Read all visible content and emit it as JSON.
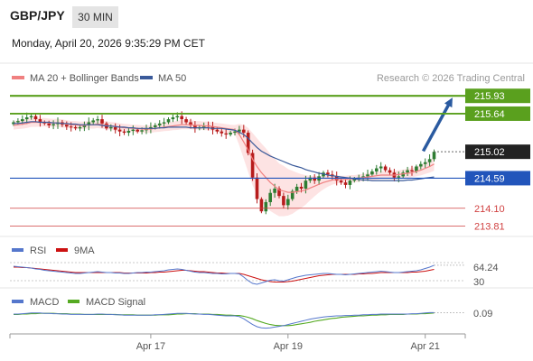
{
  "header": {
    "symbol": "GBP/JPY",
    "timeframe": "30 MIN",
    "datetime": "Monday, April 20, 2026 9:35:29 PM CET"
  },
  "credit": "Research © 2026 Trading Central",
  "colors": {
    "up_candle": "#2e7d32",
    "down_candle": "#b71c1c",
    "ma20": "#f08080",
    "bands_fill": "#fde3e3",
    "ma50": "#3a5a9a",
    "resistance": "#5aa01e",
    "support": "#2255bb",
    "minor_support": "#d04040",
    "arrow": "#2a5aa0",
    "rsi": "#5577cc",
    "rsi_ma": "#cc1111",
    "macd": "#5577cc",
    "macd_signal": "#55aa22"
  },
  "chart_data": [
    {
      "type": "candlestick",
      "legend": [
        {
          "name": "MA 20 + Bollinger Bands",
          "color": "#f08080"
        },
        {
          "name": "MA 50",
          "color": "#3a5a9a"
        }
      ],
      "ylim": [
        213.7,
        216.08
      ],
      "x_ticks": [
        {
          "label": "Apr 17",
          "index": 31
        },
        {
          "label": "Apr 19",
          "index": 62
        },
        {
          "label": "Apr 21",
          "index": 93
        }
      ],
      "levels": [
        {
          "value": 215.93,
          "label": "215.93",
          "style": "resistance-strong"
        },
        {
          "value": 215.64,
          "label": "215.64",
          "style": "resistance"
        },
        {
          "value": 215.02,
          "label": "215.02",
          "style": "last"
        },
        {
          "value": 214.59,
          "label": "214.59",
          "style": "support"
        },
        {
          "value": 214.1,
          "label": "214.10",
          "style": "minor"
        },
        {
          "value": 213.81,
          "label": "213.81",
          "style": "minor"
        }
      ],
      "forecast_arrow": {
        "from_index": 95,
        "from_value": 215.03,
        "to_index": 100,
        "to_value": 215.85
      },
      "closes": [
        215.5,
        215.52,
        215.55,
        215.58,
        215.6,
        215.55,
        215.5,
        215.48,
        215.45,
        215.47,
        215.5,
        215.46,
        215.43,
        215.42,
        215.4,
        215.42,
        215.45,
        215.5,
        215.53,
        215.55,
        215.48,
        215.4,
        215.42,
        215.38,
        215.35,
        215.33,
        215.36,
        215.38,
        215.35,
        215.37,
        215.4,
        215.42,
        215.45,
        215.48,
        215.5,
        215.55,
        215.58,
        215.6,
        215.55,
        215.5,
        215.45,
        215.4,
        215.42,
        215.45,
        215.43,
        215.38,
        215.35,
        215.32,
        215.3,
        215.33,
        215.35,
        215.38,
        215.33,
        215.0,
        214.6,
        214.25,
        214.05,
        214.2,
        214.35,
        214.42,
        214.3,
        214.15,
        214.25,
        214.38,
        214.45,
        214.42,
        214.55,
        214.6,
        214.55,
        214.62,
        214.68,
        214.65,
        214.62,
        214.55,
        214.52,
        214.48,
        214.55,
        214.58,
        214.6,
        214.62,
        214.65,
        214.7,
        214.75,
        214.78,
        214.72,
        214.68,
        214.6,
        214.62,
        214.68,
        214.72,
        214.7,
        214.78,
        214.82,
        214.85,
        214.9,
        215.02
      ],
      "ma50": [
        215.48,
        215.48,
        215.49,
        215.5,
        215.51,
        215.51,
        215.5,
        215.5,
        215.5,
        215.49,
        215.49,
        215.48,
        215.48,
        215.47,
        215.47,
        215.46,
        215.46,
        215.46,
        215.46,
        215.46,
        215.45,
        215.44,
        215.44,
        215.43,
        215.42,
        215.42,
        215.41,
        215.41,
        215.4,
        215.4,
        215.4,
        215.4,
        215.4,
        215.41,
        215.41,
        215.42,
        215.42,
        215.42,
        215.42,
        215.42,
        215.41,
        215.41,
        215.41,
        215.41,
        215.41,
        215.4,
        215.4,
        215.4,
        215.39,
        215.38,
        215.37,
        215.34,
        215.3,
        215.24,
        215.16,
        215.09,
        215.03,
        214.99,
        214.95,
        214.92,
        214.89,
        214.86,
        214.83,
        214.8,
        214.78,
        214.76,
        214.73,
        214.71,
        214.69,
        214.67,
        214.66,
        214.64,
        214.63,
        214.62,
        214.61,
        214.6,
        214.59,
        214.58,
        214.57,
        214.56,
        214.56,
        214.55,
        214.55,
        214.55,
        214.55,
        214.55,
        214.55,
        214.55,
        214.55,
        214.56,
        214.56,
        214.57,
        214.58,
        214.59,
        214.6,
        214.61
      ],
      "ma20": [
        215.45,
        215.46,
        215.47,
        215.48,
        215.5,
        215.5,
        215.5,
        215.5,
        215.49,
        215.49,
        215.49,
        215.48,
        215.47,
        215.46,
        215.46,
        215.45,
        215.45,
        215.46,
        215.46,
        215.47,
        215.46,
        215.45,
        215.44,
        215.43,
        215.42,
        215.41,
        215.41,
        215.4,
        215.4,
        215.39,
        215.39,
        215.39,
        215.4,
        215.41,
        215.42,
        215.43,
        215.44,
        215.45,
        215.46,
        215.46,
        215.46,
        215.45,
        215.45,
        215.44,
        215.44,
        215.43,
        215.42,
        215.41,
        215.4,
        215.39,
        215.38,
        215.3,
        215.18,
        215.05,
        214.9,
        214.78,
        214.68,
        214.6,
        214.52,
        214.46,
        214.4,
        214.38,
        214.36,
        214.36,
        214.37,
        214.38,
        214.4,
        214.43,
        214.46,
        214.49,
        214.52,
        214.54,
        214.56,
        214.57,
        214.57,
        214.57,
        214.58,
        214.58,
        214.59,
        214.6,
        214.61,
        214.62,
        214.63,
        214.64,
        214.64,
        214.64,
        214.64,
        214.65,
        214.66,
        214.67,
        214.68,
        214.7,
        214.72,
        214.75,
        214.78,
        214.82
      ],
      "bb_width": [
        0.14,
        0.14,
        0.15,
        0.15,
        0.15,
        0.15,
        0.14,
        0.14,
        0.14,
        0.13,
        0.13,
        0.13,
        0.13,
        0.12,
        0.12,
        0.12,
        0.12,
        0.12,
        0.13,
        0.13,
        0.13,
        0.13,
        0.13,
        0.13,
        0.13,
        0.13,
        0.12,
        0.12,
        0.12,
        0.12,
        0.12,
        0.12,
        0.12,
        0.13,
        0.13,
        0.14,
        0.14,
        0.15,
        0.15,
        0.15,
        0.15,
        0.14,
        0.14,
        0.14,
        0.14,
        0.14,
        0.14,
        0.14,
        0.14,
        0.14,
        0.15,
        0.35,
        0.55,
        0.72,
        0.85,
        0.92,
        0.95,
        0.95,
        0.93,
        0.9,
        0.86,
        0.82,
        0.76,
        0.7,
        0.62,
        0.55,
        0.48,
        0.4,
        0.33,
        0.27,
        0.22,
        0.18,
        0.15,
        0.13,
        0.12,
        0.12,
        0.12,
        0.12,
        0.12,
        0.12,
        0.12,
        0.12,
        0.13,
        0.13,
        0.13,
        0.13,
        0.14,
        0.14,
        0.14,
        0.15,
        0.15,
        0.16,
        0.17,
        0.18,
        0.2,
        0.22
      ]
    },
    {
      "type": "line",
      "legend": [
        {
          "name": "RSI",
          "color": "#5577cc"
        },
        {
          "name": "9MA",
          "color": "#cc1111"
        }
      ],
      "ylim": [
        20,
        80
      ],
      "last_value": "64.24",
      "lower_label": "30",
      "rsi": [
        62,
        61,
        60,
        59,
        58,
        56,
        55,
        53,
        52,
        51,
        50,
        49,
        48,
        47,
        46,
        46,
        47,
        48,
        49,
        50,
        49,
        48,
        48,
        47,
        47,
        46,
        46,
        47,
        48,
        48,
        49,
        49,
        50,
        51,
        52,
        54,
        55,
        56,
        55,
        53,
        51,
        49,
        48,
        48,
        47,
        46,
        46,
        45,
        45,
        46,
        46,
        45,
        38,
        30,
        24,
        22,
        25,
        28,
        31,
        32,
        30,
        29,
        32,
        35,
        38,
        40,
        42,
        43,
        44,
        45,
        46,
        46,
        45,
        44,
        44,
        43,
        44,
        45,
        46,
        47,
        48,
        49,
        50,
        51,
        50,
        49,
        48,
        48,
        49,
        50,
        51,
        52,
        54,
        57,
        60,
        64.24
      ],
      "ma9": [
        60,
        60,
        59,
        59,
        58,
        57,
        56,
        55,
        54,
        53,
        52,
        51,
        50,
        49,
        48,
        48,
        48,
        48,
        48,
        48,
        48,
        48,
        48,
        48,
        48,
        47,
        47,
        47,
        47,
        47,
        47,
        48,
        48,
        49,
        49,
        50,
        51,
        52,
        53,
        53,
        52,
        51,
        50,
        50,
        49,
        48,
        47,
        47,
        46,
        46,
        46,
        46,
        44,
        41,
        38,
        35,
        32,
        30,
        28,
        27,
        27,
        27,
        28,
        29,
        31,
        33,
        35,
        37,
        39,
        41,
        42,
        43,
        44,
        44,
        44,
        44,
        44,
        44,
        45,
        45,
        46,
        46,
        47,
        48,
        48,
        48,
        48,
        48,
        48,
        48,
        49,
        49,
        50,
        51,
        53,
        55
      ]
    },
    {
      "type": "line",
      "legend": [
        {
          "name": "MACD",
          "color": "#5577cc"
        },
        {
          "name": "MACD Signal",
          "color": "#55aa22"
        }
      ],
      "ylim": [
        -0.45,
        0.25
      ],
      "last_value": "0.09",
      "macd": [
        0.05,
        0.05,
        0.06,
        0.07,
        0.08,
        0.08,
        0.08,
        0.07,
        0.07,
        0.06,
        0.06,
        0.05,
        0.05,
        0.04,
        0.04,
        0.04,
        0.04,
        0.04,
        0.04,
        0.05,
        0.05,
        0.04,
        0.04,
        0.03,
        0.03,
        0.02,
        0.02,
        0.02,
        0.02,
        0.02,
        0.02,
        0.02,
        0.03,
        0.03,
        0.04,
        0.05,
        0.06,
        0.07,
        0.07,
        0.07,
        0.06,
        0.05,
        0.05,
        0.04,
        0.04,
        0.03,
        0.02,
        0.01,
        0.0,
        0.0,
        0.0,
        -0.02,
        -0.08,
        -0.16,
        -0.24,
        -0.3,
        -0.33,
        -0.34,
        -0.33,
        -0.31,
        -0.29,
        -0.27,
        -0.24,
        -0.21,
        -0.18,
        -0.15,
        -0.12,
        -0.09,
        -0.07,
        -0.05,
        -0.03,
        -0.02,
        -0.01,
        0.0,
        0.0,
        0.01,
        0.01,
        0.02,
        0.02,
        0.03,
        0.03,
        0.04,
        0.04,
        0.05,
        0.05,
        0.05,
        0.05,
        0.05,
        0.05,
        0.05,
        0.06,
        0.06,
        0.07,
        0.08,
        0.09,
        0.09
      ],
      "signal": [
        0.04,
        0.04,
        0.05,
        0.05,
        0.06,
        0.06,
        0.07,
        0.07,
        0.07,
        0.07,
        0.06,
        0.06,
        0.06,
        0.05,
        0.05,
        0.05,
        0.04,
        0.04,
        0.04,
        0.04,
        0.04,
        0.04,
        0.04,
        0.04,
        0.03,
        0.03,
        0.03,
        0.03,
        0.02,
        0.02,
        0.02,
        0.02,
        0.02,
        0.03,
        0.03,
        0.03,
        0.04,
        0.05,
        0.05,
        0.06,
        0.06,
        0.06,
        0.05,
        0.05,
        0.05,
        0.04,
        0.04,
        0.03,
        0.02,
        0.02,
        0.01,
        0.01,
        -0.01,
        -0.04,
        -0.08,
        -0.13,
        -0.17,
        -0.21,
        -0.24,
        -0.26,
        -0.27,
        -0.27,
        -0.27,
        -0.26,
        -0.24,
        -0.22,
        -0.2,
        -0.18,
        -0.15,
        -0.13,
        -0.11,
        -0.09,
        -0.07,
        -0.06,
        -0.04,
        -0.03,
        -0.02,
        -0.01,
        0.0,
        0.0,
        0.01,
        0.02,
        0.02,
        0.03,
        0.03,
        0.04,
        0.04,
        0.04,
        0.04,
        0.05,
        0.05,
        0.05,
        0.06,
        0.06,
        0.07,
        0.08
      ]
    }
  ]
}
